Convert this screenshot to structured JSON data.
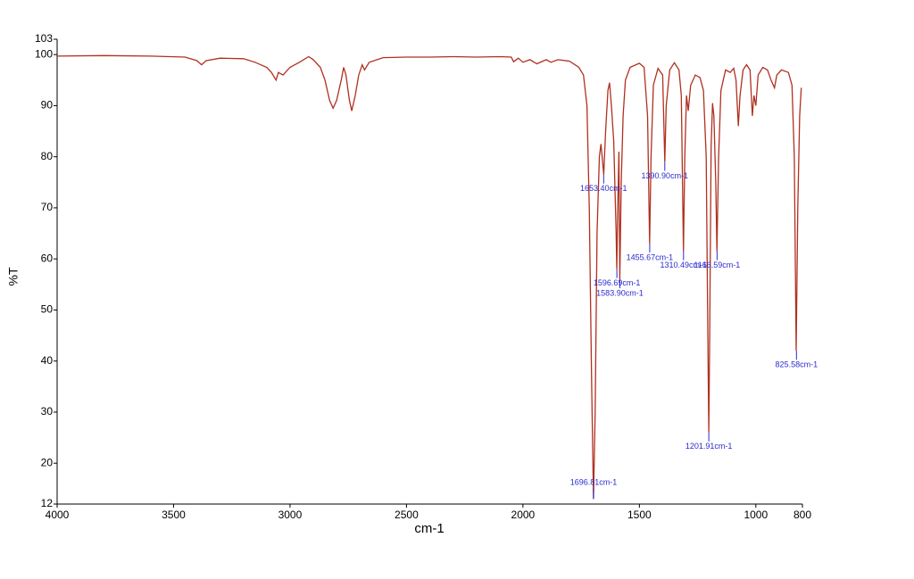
{
  "chart_data": {
    "type": "line",
    "xlabel": "cm-1",
    "ylabel": "%T",
    "color": "#b03020",
    "annotation_color": "#2a2ad0",
    "xlim": [
      4000,
      800
    ],
    "ylim": [
      12,
      103
    ],
    "xticks": [
      4000,
      3500,
      3000,
      2500,
      2000,
      1500,
      1000,
      800
    ],
    "yticks": [
      12,
      20,
      30,
      40,
      50,
      60,
      70,
      80,
      90,
      100,
      103
    ],
    "x": [
      4000,
      3800,
      3600,
      3450,
      3400,
      3380,
      3360,
      3300,
      3200,
      3150,
      3100,
      3080,
      3060,
      3050,
      3030,
      3000,
      2960,
      2920,
      2900,
      2870,
      2850,
      2830,
      2815,
      2800,
      2780,
      2770,
      2760,
      2745,
      2735,
      2720,
      2705,
      2690,
      2680,
      2660,
      2600,
      2500,
      2400,
      2300,
      2200,
      2100,
      2050,
      2040,
      2020,
      2000,
      1970,
      1940,
      1900,
      1880,
      1850,
      1800,
      1760,
      1740,
      1725,
      1715,
      1705,
      1697,
      1690,
      1682,
      1672,
      1665,
      1660,
      1653,
      1645,
      1635,
      1628,
      1620,
      1610,
      1600,
      1597,
      1593,
      1588,
      1584,
      1578,
      1570,
      1560,
      1540,
      1500,
      1480,
      1465,
      1456,
      1450,
      1440,
      1420,
      1400,
      1391,
      1385,
      1370,
      1350,
      1330,
      1320,
      1311,
      1305,
      1298,
      1290,
      1280,
      1260,
      1240,
      1225,
      1213,
      1205,
      1202,
      1198,
      1192,
      1186,
      1180,
      1172,
      1167,
      1160,
      1150,
      1130,
      1110,
      1095,
      1085,
      1075,
      1068,
      1055,
      1040,
      1025,
      1015,
      1008,
      1000,
      990,
      970,
      950,
      935,
      920,
      910,
      890,
      860,
      845,
      835,
      827,
      820,
      812,
      805
    ],
    "values": [
      99.7,
      99.8,
      99.7,
      99.5,
      98.8,
      98.0,
      98.8,
      99.3,
      99.2,
      98.5,
      97.5,
      96.5,
      95.0,
      96.5,
      96.0,
      97.5,
      98.5,
      99.6,
      99.0,
      97.5,
      95,
      91,
      89.5,
      91,
      95,
      97.5,
      96,
      91,
      89.0,
      92,
      96,
      98,
      97,
      98.5,
      99.4,
      99.5,
      99.5,
      99.6,
      99.5,
      99.6,
      99.5,
      98.6,
      99.3,
      98.5,
      99,
      98.2,
      99,
      98.5,
      99,
      98.7,
      97.5,
      96,
      90,
      70,
      35,
      13,
      30,
      65,
      80,
      82.5,
      80,
      76.5,
      85,
      93,
      94.5,
      90,
      83,
      65,
      58,
      70,
      81,
      56,
      75,
      88,
      95,
      97.5,
      98.3,
      97.5,
      88,
      63,
      80,
      94,
      97.3,
      96,
      79,
      90,
      97,
      98.4,
      97,
      92,
      61.5,
      80,
      92,
      89,
      94,
      96,
      95.5,
      93,
      80,
      40,
      26,
      45,
      82,
      90.5,
      88,
      75,
      61.5,
      80,
      93,
      97,
      96.5,
      97.3,
      95,
      86,
      92,
      97,
      98,
      97,
      88,
      92,
      90,
      96,
      97.5,
      97,
      95,
      93.5,
      96,
      97,
      96.5,
      94,
      80,
      42,
      70,
      88,
      93.5
    ],
    "annotations": [
      {
        "label": "1653.40cm-1",
        "x": 1653.4,
        "y": 76.5
      },
      {
        "label": "1390.90cm-1",
        "x": 1390.9,
        "y": 79
      },
      {
        "label": "1455.67cm-1",
        "x": 1455.67,
        "y": 63
      },
      {
        "label": "1310.49cm-1",
        "x": 1310.49,
        "y": 61.5
      },
      {
        "label": "1166.59cm-1",
        "x": 1166.59,
        "y": 61.5
      },
      {
        "label": "1596.69cm-1",
        "x": 1596.69,
        "y": 58
      },
      {
        "label": "1583.90cm-1",
        "x": 1583.9,
        "y": 56
      },
      {
        "label": "825.58cm-1",
        "x": 825.58,
        "y": 42
      },
      {
        "label": "1201.91cm-1",
        "x": 1201.91,
        "y": 26
      },
      {
        "label": "1696.81cm-1",
        "x": 1696.81,
        "y": 13
      }
    ]
  }
}
